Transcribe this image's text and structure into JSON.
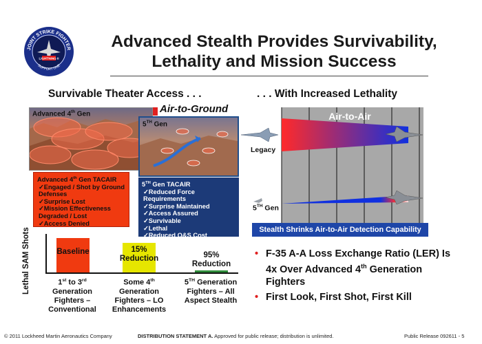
{
  "title": {
    "line1": "Advanced Stealth Provides Survivability,",
    "line2": "Lethality and Mission Success"
  },
  "logo": {
    "text_top": "JOINT STRIKE FIGHTER",
    "text_bottom": "SUPPORT ONE",
    "text_center": "LIGHTNING II",
    "icon": "jsf-program-seal-icon"
  },
  "left": {
    "heading": "Survivable Theater Access . . .",
    "panel1_label": "Advanced 4",
    "panel1_label_sup": "th",
    "panel1_label_tail": " Gen",
    "panel2_label": "5",
    "panel2_label_sup": "TH",
    "panel2_label_tail": " Gen",
    "air_to_ground": "Air-to-Ground",
    "red_box": {
      "head_a": "Advanced 4",
      "head_sup": "th",
      "head_b": " Gen TACAIR",
      "items": [
        "Engaged / Shot by Ground Defenses",
        "Surprise Lost",
        "Mission Effectiveness Degraded / Lost",
        "Access Denied"
      ]
    },
    "blue_box": {
      "head_a": "5",
      "head_sup": "TH",
      "head_b": " Gen TACAIR",
      "items": [
        "Reduced Force Requirements",
        "Surprise Maintained",
        "Access Assured",
        "Survivable",
        "Lethal",
        "Reduced O&S Cost"
      ]
    }
  },
  "bars": {
    "ylabel": "Lethal SAM Shots",
    "items": [
      {
        "label": "Baseline",
        "value_pct": 100,
        "color": "#f03a10"
      },
      {
        "label_a": "15%",
        "label_b": "Reduction",
        "value_pct": 85,
        "color": "#e6e600"
      },
      {
        "label_a": "95%",
        "label_b": "Reduction",
        "value_pct": 5,
        "color": "#2e8b3a"
      }
    ],
    "cats": [
      {
        "l1a": "1",
        "l1s": "st",
        "l1b": " to 3",
        "l1s2": "rd",
        "l2": "Generation",
        "l3": "Fighters –",
        "l4": "Conventional"
      },
      {
        "l1a": "Some 4",
        "l1s": "th",
        "l2": "Generation",
        "l3": "Fighters – LO",
        "l4": "Enhancements"
      },
      {
        "l1a": "5",
        "l1s": "TH",
        "l1b": " Generation",
        "l2": "Fighters – All",
        "l3": "Aspect Stealth"
      }
    ]
  },
  "right": {
    "heading": ". . . With Increased Lethality",
    "air_to_air": "Air-to-Air",
    "legacy": "Legacy",
    "fifth_a": "5",
    "fifth_sup": "TH",
    "fifth_b": " Gen",
    "caption": "Stealth Shrinks Air-to-Air Detection Capability",
    "bullets": [
      {
        "text_a": "F-35 A-A Loss Exchange Ratio (LER) Is 4x Over Advanced 4",
        "sup": "th",
        "text_b": " Generation Fighters"
      },
      {
        "text_a": "First Look, First Shot, First Kill",
        "sup": "",
        "text_b": ""
      }
    ]
  },
  "footer": {
    "copyright": "© 2011 Lockheed Martin Aeronautics Company",
    "dist_bold": "DISTRIBUTION STATEMENT A.",
    "dist_rest": " Approved for public release; distribution is unlimited.",
    "release": "Public Release 092611 - 5"
  },
  "colors": {
    "red": "#f03a10",
    "blue_box": "#1c3a78",
    "yellow": "#e6e600",
    "green": "#2e8b3a",
    "caption": "#1e46a8",
    "bullet": "#e02020"
  }
}
